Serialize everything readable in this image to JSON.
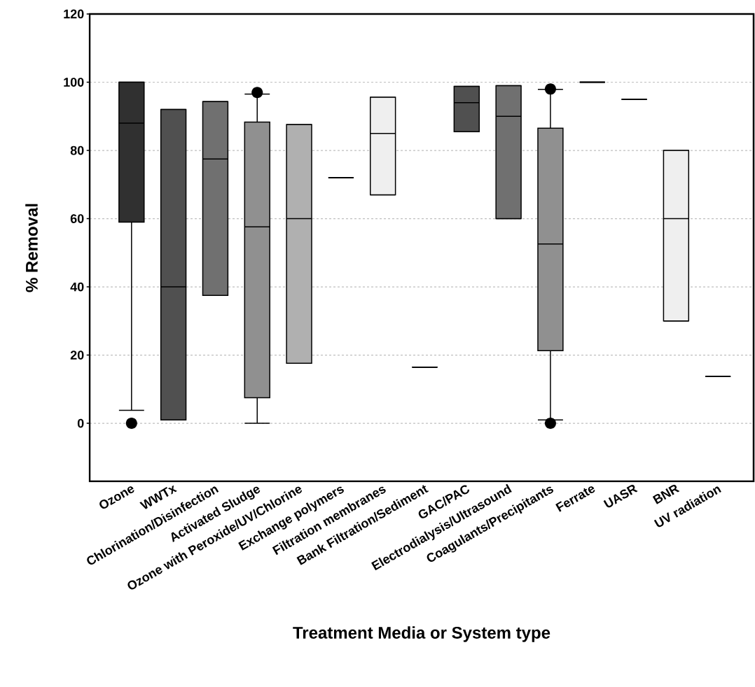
{
  "chart_data": {
    "type": "box",
    "xlabel": "Treatment Media or System type",
    "ylabel": "% Removal",
    "categories": [
      "Ozone",
      "WWTx",
      "Chlorination/Disinfection",
      "Activated Sludge",
      "Ozone with Peroxide/UV/Chlorine",
      "Exchange polymers",
      "Filtration membranes",
      "Bank Filtration/Sediment",
      "GAC/PAC",
      "Electrodialysis/Ultrasound",
      "Coagulants/Precipitants",
      "Ferrate",
      "UASR",
      "BNR",
      "UV radiation"
    ],
    "boxes": [
      {
        "low": 3.8,
        "q1": 59,
        "median": 88,
        "q3": 100,
        "high": 100,
        "outliers": [
          0
        ]
      },
      {
        "low": 1,
        "q1": 1,
        "median": 40,
        "q3": 92,
        "high": 92
      },
      {
        "low": 37.5,
        "q1": 37.5,
        "median": 77.5,
        "q3": 94.3,
        "high": 94.3
      },
      {
        "low": 0,
        "q1": 7.5,
        "median": 57.6,
        "q3": 88.3,
        "high": 96.5,
        "outliers": [
          97
        ]
      },
      {
        "low": 17.6,
        "q1": 17.6,
        "median": 60,
        "q3": 87.6,
        "high": 87.6
      },
      {
        "low": 72,
        "q1": 72,
        "median": 72,
        "q3": 72,
        "high": 72
      },
      {
        "low": 67,
        "q1": 67,
        "median": 85,
        "q3": 95.6,
        "high": 95.6
      },
      {
        "low": 16.5,
        "q1": 16.5,
        "median": 16.5,
        "q3": 16.5,
        "high": 16.5
      },
      {
        "low": 85.5,
        "q1": 85.5,
        "median": 94,
        "q3": 98.8,
        "high": 98.8
      },
      {
        "low": 60,
        "q1": 60,
        "median": 90,
        "q3": 99,
        "high": 99
      },
      {
        "low": 1,
        "q1": 21.3,
        "median": 52.6,
        "q3": 86.5,
        "high": 97.9,
        "outliers": [
          0,
          98
        ]
      },
      {
        "low": 100,
        "q1": 100,
        "median": 100,
        "q3": 100,
        "high": 100
      },
      {
        "low": 95,
        "q1": 95,
        "median": 95,
        "q3": 95,
        "high": 95
      },
      {
        "low": 30,
        "q1": 30,
        "median": 60,
        "q3": 80,
        "high": 80
      },
      {
        "low": 13.7,
        "q1": 13.7,
        "median": 13.7,
        "q3": 13.7,
        "high": 13.7
      }
    ],
    "colors": [
      "#303030",
      "#505050",
      "#707070",
      "#909090",
      "#b0b0b0",
      null,
      "#efefef",
      null,
      "#505050",
      "#707070",
      "#909090",
      null,
      null,
      "#efefef",
      null
    ],
    "ylim": [
      -17,
      120
    ],
    "yticks": [
      0,
      20,
      40,
      60,
      80,
      100,
      120
    ],
    "grid": "y"
  }
}
